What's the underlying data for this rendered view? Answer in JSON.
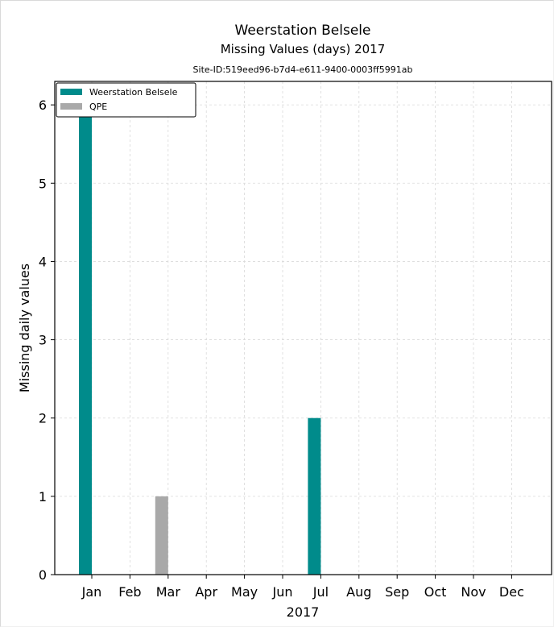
{
  "chart_data": {
    "type": "bar",
    "title": "Weerstation Belsele",
    "subtitle": "Missing Values (days) 2017",
    "site_id": "Site-ID:519eed96-b7d4-e611-9400-0003ff5991ab",
    "xlabel": "2017",
    "ylabel": "Missing daily values",
    "categories": [
      "Jan",
      "Feb",
      "Mar",
      "Apr",
      "May",
      "Jun",
      "Jul",
      "Aug",
      "Sep",
      "Oct",
      "Nov",
      "Dec"
    ],
    "ylim": [
      0,
      6.3
    ],
    "yticks": [
      "0",
      "1",
      "2",
      "3",
      "4",
      "5",
      "6"
    ],
    "grid": true,
    "legend_position": "top-left",
    "series": [
      {
        "name": "Weerstation Belsele",
        "color": "#008b8b",
        "values": [
          6,
          0,
          0,
          0,
          0,
          0,
          2,
          0,
          0,
          0,
          0,
          0
        ]
      },
      {
        "name": "QPE",
        "color": "#a9a9a9",
        "values": [
          0,
          0,
          1,
          0,
          0,
          0,
          0,
          0,
          0,
          0,
          0,
          0
        ]
      }
    ]
  }
}
